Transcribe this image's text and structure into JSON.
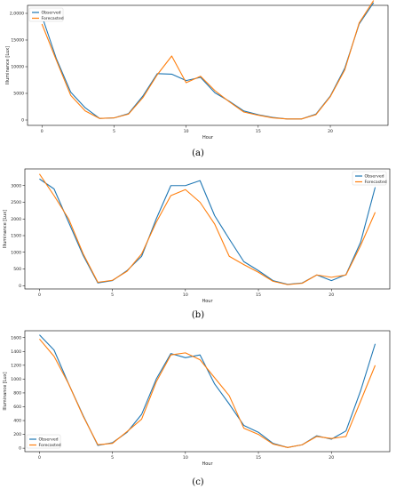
{
  "chart_data": [
    {
      "type": "line",
      "caption": "(a)",
      "xlabel": "Hour",
      "ylabel": "Illuminance [Lux]",
      "xlim": [
        -1,
        24
      ],
      "ylim": [
        -1000,
        21500
      ],
      "x_ticks": [
        0,
        5,
        10,
        15,
        20
      ],
      "y_ticks": [
        0,
        5000,
        10000,
        15000,
        20000
      ],
      "y_tick_labels": [
        "0",
        "5000",
        "10000",
        "15000",
        "2,0000"
      ],
      "legend_position": "top-left",
      "x": [
        0,
        1,
        2,
        3,
        4,
        5,
        6,
        7,
        8,
        9,
        10,
        11,
        12,
        13,
        14,
        15,
        16,
        17,
        18,
        19,
        20,
        21,
        22,
        23
      ],
      "series": [
        {
          "name": "Observed",
          "color": "#1f77b4",
          "values": [
            19500,
            11500,
            5200,
            2300,
            300,
            400,
            1200,
            4500,
            8700,
            8600,
            7400,
            8000,
            5100,
            3500,
            1700,
            1000,
            500,
            200,
            200,
            1100,
            4500,
            9700,
            18000,
            22000
          ]
        },
        {
          "name": "Forecasted",
          "color": "#ff7f0e",
          "values": [
            18000,
            11200,
            4600,
            1700,
            300,
            400,
            1100,
            4200,
            8500,
            12000,
            7000,
            8200,
            5500,
            3400,
            1500,
            900,
            400,
            200,
            200,
            1000,
            4400,
            9400,
            18200,
            22400
          ]
        }
      ]
    },
    {
      "type": "line",
      "caption": "(b)",
      "xlabel": "Hour",
      "ylabel": "Illuminance [Lux]",
      "xlim": [
        -1,
        24
      ],
      "ylim": [
        -100,
        3500
      ],
      "x_ticks": [
        0,
        5,
        10,
        15,
        20
      ],
      "y_ticks": [
        0,
        500,
        1000,
        1500,
        2000,
        2500,
        3000
      ],
      "y_tick_labels": [
        "0",
        "500",
        "1000",
        "1500",
        "2000",
        "2500",
        "3000"
      ],
      "legend_position": "top-right",
      "x": [
        0,
        1,
        2,
        3,
        4,
        5,
        6,
        7,
        8,
        9,
        10,
        11,
        12,
        13,
        14,
        15,
        16,
        17,
        18,
        19,
        20,
        21,
        22,
        23
      ],
      "series": [
        {
          "name": "Observed",
          "color": "#1f77b4",
          "values": [
            3200,
            2900,
            1900,
            900,
            80,
            150,
            450,
            880,
            2000,
            3000,
            3000,
            3150,
            2100,
            1400,
            720,
            450,
            150,
            40,
            80,
            320,
            150,
            330,
            1300,
            2950
          ]
        },
        {
          "name": "Forecasted",
          "color": "#ff7f0e",
          "values": [
            3350,
            2700,
            2000,
            950,
            100,
            160,
            430,
            950,
            1900,
            2700,
            2880,
            2500,
            1850,
            880,
            630,
            400,
            130,
            30,
            70,
            320,
            250,
            320,
            1200,
            2200
          ]
        }
      ]
    },
    {
      "type": "line",
      "caption": "(c)",
      "xlabel": "Hour",
      "ylabel": "Illuminance [Lux]",
      "xlim": [
        -1,
        24
      ],
      "ylim": [
        -50,
        1700
      ],
      "x_ticks": [
        0,
        5,
        10,
        15,
        20
      ],
      "y_ticks": [
        0,
        200,
        400,
        600,
        800,
        1000,
        1200,
        1400,
        1600
      ],
      "y_tick_labels": [
        "0",
        "200",
        "400",
        "600",
        "800",
        "1000",
        "1200",
        "1400",
        "1600"
      ],
      "legend_position": "bottom-left",
      "x": [
        0,
        1,
        2,
        3,
        4,
        5,
        6,
        7,
        8,
        9,
        10,
        11,
        12,
        13,
        14,
        15,
        16,
        17,
        18,
        19,
        20,
        21,
        22,
        23
      ],
      "series": [
        {
          "name": "Observed",
          "color": "#1f77b4",
          "values": [
            1640,
            1420,
            930,
            470,
            40,
            80,
            230,
            490,
            1000,
            1370,
            1310,
            1350,
            930,
            640,
            330,
            230,
            70,
            10,
            50,
            180,
            130,
            250,
            830,
            1510
          ]
        },
        {
          "name": "Forecasted",
          "color": "#ff7f0e",
          "values": [
            1580,
            1330,
            930,
            460,
            50,
            70,
            240,
            420,
            960,
            1350,
            1380,
            1280,
            1020,
            760,
            290,
            200,
            60,
            10,
            50,
            170,
            140,
            170,
            680,
            1200
          ]
        }
      ]
    }
  ]
}
